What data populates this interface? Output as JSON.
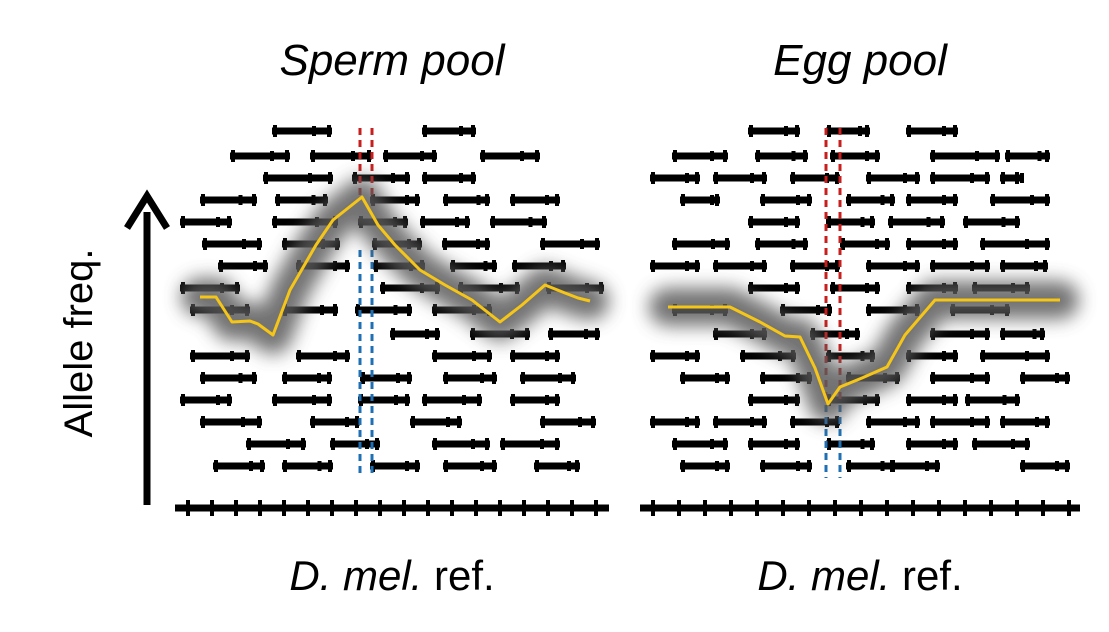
{
  "panels": [
    {
      "title": "Sperm pool",
      "reference_label_italic": "D. mel.",
      "reference_label_rest": " ref.",
      "trend": "peak"
    },
    {
      "title": "Egg pool",
      "reference_label_italic": "D. mel.",
      "reference_label_rest": " ref.",
      "trend": "dip"
    }
  ],
  "axis": {
    "label": "Allele freq.",
    "direction": "up"
  },
  "colors": {
    "reads": "#000000",
    "allele_freq_line": "#f5c518",
    "halo": "#5a5a5a",
    "snp_red": "#c81e1e",
    "snp_blue": "#1f6fb4"
  }
}
